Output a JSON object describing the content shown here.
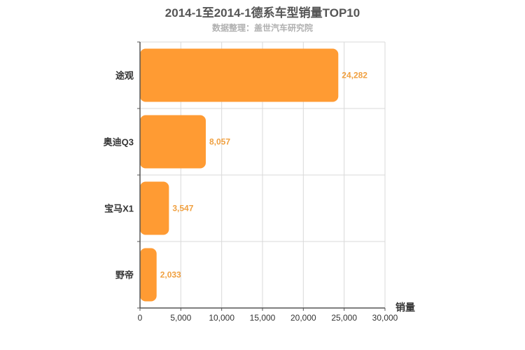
{
  "chart_data": {
    "type": "bar",
    "orientation": "horizontal",
    "title": "2014-1至2014-1德系车型销量TOP10",
    "subtitle": "数据整理：盖世汽车研究院",
    "xlabel": "销量",
    "ylabel": "",
    "categories": [
      "途观",
      "奥迪Q3",
      "宝马X1",
      "野帝"
    ],
    "values": [
      24282,
      8057,
      3547,
      2033
    ],
    "value_labels": [
      "24,282",
      "8,057",
      "3,547",
      "2,033"
    ],
    "xlim": [
      0,
      30000
    ],
    "xticks": [
      0,
      5000,
      10000,
      15000,
      20000,
      25000,
      30000
    ],
    "xtick_labels": [
      "0",
      "5,000",
      "10,000",
      "15,000",
      "20,000",
      "25,000",
      "30,000"
    ],
    "grid": true,
    "legend": "none",
    "colors": {
      "bar": "#ff9b33",
      "label": "#f0a040",
      "grid": "#d9d9d9",
      "axis": "#555555"
    }
  }
}
